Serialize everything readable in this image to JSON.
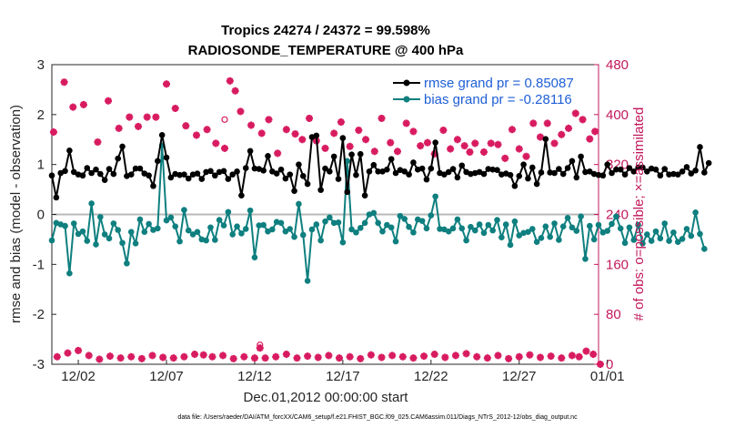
{
  "chart_data": {
    "type": "line",
    "title": "Tropics 24274 / 24372 = 99.598%",
    "subtitle": "RADIOSONDE_TEMPERATURE @ 400 hPa",
    "xlabel": "Dec.01,2012 00:00:00 start",
    "ylabel_left": "rmse and bias (model - observation)",
    "ylabel_right": "# of obs: o=possible; ×=assimilated",
    "footer": "data file: /Users/raeder/DAI/ATM_forcXX/CAM6_setup/f.e21.FHIST_BGC.f09_025.CAM6assim.011/Diags_NTrS_2012-12/obs_diag_output.nc",
    "x_range_days": [
      0.5,
      31.5
    ],
    "ylim_left": [
      -3,
      3
    ],
    "ylim_right": [
      0,
      480
    ],
    "x_ticks": [
      {
        "day": 2,
        "label": "12/02"
      },
      {
        "day": 7,
        "label": "12/07"
      },
      {
        "day": 12,
        "label": "12/12"
      },
      {
        "day": 17,
        "label": "12/17"
      },
      {
        "day": 22,
        "label": "12/22"
      },
      {
        "day": 27,
        "label": "12/27"
      },
      {
        "day": 32,
        "label": "01/01"
      }
    ],
    "y_ticks_left": [
      "3",
      "2",
      "1",
      "0",
      "-1",
      "-2",
      "-3"
    ],
    "y_ticks_right": [
      "480",
      "400",
      "320",
      "240",
      "160",
      "80",
      "0"
    ],
    "zero_line": 0,
    "colors": {
      "rmse": "#000000",
      "bias": "#0f7f7f",
      "obs": "#d81b60",
      "right_axis": "#c2185b",
      "legend_text": "#1f5fd6"
    },
    "legend": [
      "rmse grand pr = 0.85087",
      "bias grand pr = -0.28116"
    ],
    "series": [
      {
        "name": "rmse grand pr = 0.85087",
        "axis": "left",
        "color": "#000000",
        "t0_day": 0.5,
        "dt_day": 0.25,
        "values": [
          0.78,
          0.34,
          0.83,
          0.87,
          1.28,
          0.85,
          0.8,
          0.78,
          0.93,
          0.83,
          0.9,
          0.81,
          0.69,
          0.91,
          0.81,
          1.12,
          1.36,
          0.77,
          0.8,
          0.92,
          0.92,
          0.82,
          0.78,
          0.57,
          1.07,
          1.59,
          1.14,
          0.74,
          0.81,
          0.79,
          0.8,
          0.72,
          0.8,
          0.82,
          0.71,
          0.85,
          0.87,
          0.78,
          0.85,
          0.87,
          0.71,
          0.8,
          0.86,
          0.38,
          0.93,
          1.27,
          0.92,
          0.91,
          0.88,
          1.17,
          0.86,
          0.82,
          0.9,
          0.72,
          0.8,
          0.47,
          1.0,
          0.77,
          0.61,
          1.55,
          1.58,
          0.49,
          0.92,
          0.86,
          1.16,
          0.71,
          1.53,
          0.45,
          1.2,
          0.79,
          1.21,
          0.38,
          0.86,
          0.99,
          0.86,
          0.86,
          0.9,
          1.11,
          0.83,
          0.89,
          0.86,
          0.8,
          1.04,
          0.9,
          0.92,
          0.7,
          0.92,
          1.44,
          0.83,
          0.8,
          0.85,
          0.91,
          0.74,
          0.98,
          0.85,
          0.81,
          0.83,
          0.85,
          0.81,
          0.91,
          0.9,
          0.89,
          0.8,
          0.82,
          0.79,
          0.57,
          0.77,
          1.0,
          0.72,
          0.94,
          0.61,
          0.84,
          1.51,
          0.84,
          0.83,
          0.91,
          0.81,
          0.93,
          1.07,
          0.74,
          1.16,
          0.85,
          0.86,
          0.81,
          0.79,
          0.78,
          1.0,
          0.83,
          0.9,
          0.9,
          0.8,
          0.93,
          0.86,
          0.94,
          0.94,
          0.86,
          0.92,
          0.9,
          0.78,
          0.91,
          0.8,
          0.81,
          0.8,
          0.86,
          0.95,
          0.82,
          0.88,
          1.35,
          0.84,
          1.03
        ]
      },
      {
        "name": "bias grand pr = -0.28116",
        "axis": "left",
        "color": "#0f7f7f",
        "t0_day": 0.5,
        "dt_day": 0.25,
        "values": [
          -0.52,
          -0.17,
          -0.2,
          -0.23,
          -1.18,
          -0.18,
          -0.39,
          -0.34,
          -0.53,
          0.22,
          -0.6,
          -0.05,
          -0.4,
          -0.48,
          -0.18,
          -0.31,
          -0.57,
          -0.98,
          -0.35,
          -0.58,
          -0.1,
          -0.35,
          -0.19,
          -0.31,
          -0.28,
          1.38,
          -0.12,
          -0.06,
          -0.24,
          -0.54,
          0.09,
          -0.32,
          -0.4,
          -0.35,
          -0.5,
          -0.52,
          -0.26,
          -0.51,
          -0.11,
          -0.22,
          0.05,
          -0.4,
          -0.24,
          -0.38,
          -0.29,
          0.08,
          -0.86,
          -0.22,
          -0.21,
          -0.34,
          -0.3,
          -0.15,
          -0.17,
          -0.34,
          -0.29,
          -0.45,
          0.21,
          -0.41,
          -1.33,
          -0.3,
          -0.2,
          -0.52,
          -0.14,
          -0.06,
          -0.17,
          -0.16,
          -0.56,
          1.07,
          -0.3,
          -0.36,
          -0.27,
          -0.17,
          0.0,
          0.03,
          -0.17,
          -0.34,
          -0.21,
          -0.26,
          -0.54,
          -0.03,
          -0.09,
          -0.25,
          -0.36,
          -0.1,
          -0.13,
          -0.28,
          -0.02,
          0.36,
          -0.29,
          -0.3,
          -0.34,
          -0.28,
          -0.1,
          -0.28,
          -0.52,
          -0.25,
          -0.32,
          -0.2,
          -0.37,
          -0.21,
          -0.32,
          -0.11,
          -0.46,
          -0.2,
          -0.61,
          -0.14,
          -0.42,
          -0.37,
          -0.35,
          -0.29,
          -0.55,
          -0.47,
          -0.24,
          -0.45,
          -0.18,
          -0.51,
          -0.24,
          -0.07,
          -0.26,
          -0.33,
          -0.04,
          -0.89,
          -0.23,
          -0.5,
          -0.21,
          -0.36,
          -0.33,
          -0.19,
          -0.04,
          -0.28,
          -0.57,
          -0.26,
          -0.51,
          -0.21,
          -0.58,
          -0.4,
          -0.53,
          -0.34,
          -0.48,
          -0.18,
          -0.53,
          -0.36,
          -0.55,
          -0.49,
          -0.29,
          -0.43,
          0.04,
          -0.39,
          -0.69
        ]
      },
      {
        "name": "obs count (possible / assimilated)",
        "axis": "right",
        "color": "#d81b60",
        "marker": "asterisk",
        "points": [
          [
            0.6,
            372
          ],
          [
            1.2,
            452
          ],
          [
            1.7,
            412
          ],
          [
            2.3,
            416
          ],
          [
            3.1,
            356
          ],
          [
            3.7,
            422
          ],
          [
            4.3,
            378
          ],
          [
            4.9,
            396
          ],
          [
            5.4,
            381
          ],
          [
            5.9,
            396
          ],
          [
            6.4,
            396
          ],
          [
            7.0,
            449
          ],
          [
            7.5,
            410
          ],
          [
            8.1,
            382
          ],
          [
            8.7,
            367
          ],
          [
            9.3,
            376
          ],
          [
            9.8,
            354
          ],
          [
            10.3,
            346
          ],
          [
            10.6,
            454
          ],
          [
            10.9,
            438
          ],
          [
            11.2,
            405
          ],
          [
            11.8,
            383
          ],
          [
            12.4,
            370
          ],
          [
            12.8,
            392
          ],
          [
            13.3,
            338
          ],
          [
            13.8,
            376
          ],
          [
            14.3,
            369
          ],
          [
            14.7,
            360
          ],
          [
            15.1,
            394
          ],
          [
            15.5,
            358
          ],
          [
            16.0,
            346
          ],
          [
            16.5,
            370
          ],
          [
            16.9,
            388
          ],
          [
            17.4,
            349
          ],
          [
            17.9,
            375
          ],
          [
            18.3,
            360
          ],
          [
            18.8,
            341
          ],
          [
            19.2,
            394
          ],
          [
            19.7,
            355
          ],
          [
            20.1,
            341
          ],
          [
            20.6,
            386
          ],
          [
            21.0,
            373
          ],
          [
            21.4,
            350
          ],
          [
            21.8,
            355
          ],
          [
            22.2,
            337
          ],
          [
            22.7,
            375
          ],
          [
            23.1,
            345
          ],
          [
            23.5,
            360
          ],
          [
            23.9,
            350
          ],
          [
            24.2,
            340
          ],
          [
            24.5,
            354
          ],
          [
            25.0,
            340
          ],
          [
            25.4,
            354
          ],
          [
            25.8,
            352
          ],
          [
            26.2,
            330
          ],
          [
            26.6,
            376
          ],
          [
            27.0,
            345
          ],
          [
            27.4,
            333
          ],
          [
            27.8,
            386
          ],
          [
            28.2,
            364
          ],
          [
            28.6,
            386
          ],
          [
            29.0,
            354
          ],
          [
            29.4,
            368
          ],
          [
            29.8,
            378
          ],
          [
            30.2,
            402
          ],
          [
            30.6,
            392
          ],
          [
            31.0,
            361
          ],
          [
            31.3,
            373
          ],
          [
            0.8,
            12
          ],
          [
            1.4,
            18
          ],
          [
            2.0,
            22
          ],
          [
            2.6,
            14
          ],
          [
            3.2,
            8
          ],
          [
            3.8,
            13
          ],
          [
            4.4,
            10
          ],
          [
            5.0,
            12
          ],
          [
            5.6,
            9
          ],
          [
            6.2,
            14
          ],
          [
            6.8,
            11
          ],
          [
            7.4,
            10
          ],
          [
            8.0,
            12
          ],
          [
            8.6,
            16
          ],
          [
            9.1,
            15
          ],
          [
            9.6,
            12
          ],
          [
            10.2,
            14
          ],
          [
            10.8,
            9
          ],
          [
            11.4,
            12
          ],
          [
            12.0,
            10
          ],
          [
            12.3,
            26
          ],
          [
            12.6,
            10
          ],
          [
            13.2,
            12
          ],
          [
            13.8,
            16
          ],
          [
            14.4,
            10
          ],
          [
            15.0,
            13
          ],
          [
            15.6,
            11
          ],
          [
            16.2,
            14
          ],
          [
            16.8,
            10
          ],
          [
            17.4,
            12
          ],
          [
            18.0,
            9
          ],
          [
            18.6,
            15
          ],
          [
            19.2,
            11
          ],
          [
            19.8,
            14
          ],
          [
            20.4,
            12
          ],
          [
            21.0,
            10
          ],
          [
            21.6,
            13
          ],
          [
            22.2,
            16
          ],
          [
            22.8,
            11
          ],
          [
            23.4,
            14
          ],
          [
            24.0,
            17
          ],
          [
            24.6,
            12
          ],
          [
            25.2,
            10
          ],
          [
            25.8,
            14
          ],
          [
            26.4,
            9
          ],
          [
            27.0,
            12
          ],
          [
            27.6,
            15
          ],
          [
            28.2,
            11
          ],
          [
            28.8,
            13
          ],
          [
            29.4,
            10
          ],
          [
            30.0,
            14
          ],
          [
            30.4,
            12
          ],
          [
            30.8,
            21
          ],
          [
            31.2,
            16
          ],
          [
            31.6,
            0
          ]
        ],
        "possible_circles": [
          [
            10.3,
            392
          ],
          [
            12.3,
            31
          ]
        ]
      }
    ]
  }
}
